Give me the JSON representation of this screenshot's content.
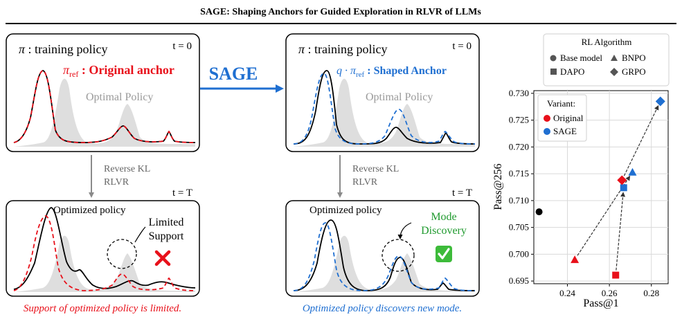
{
  "title": "SAGE: Shaping Anchors for Guided Exploration in RLVR of LLMs",
  "left_top": {
    "policy_symbol": "π",
    "policy_text": " : training policy",
    "time": "t = 0",
    "anchor_symbol": "π",
    "anchor_sub": "ref",
    "anchor_text": " : Original anchor",
    "optimal": "Optimal Policy"
  },
  "arrow_label": "SAGE",
  "mid_top": {
    "policy_symbol": "π",
    "policy_text": " : training policy",
    "time": "t = 0",
    "anchor_prefix": "q · π",
    "anchor_sub": "ref",
    "anchor_text": " : Shaped Anchor",
    "optimal": "Optimal Policy"
  },
  "transition": {
    "line1": "Reverse KL",
    "line2": "RLVR",
    "time": "t = T"
  },
  "left_bottom": {
    "optimized": "Optimized policy",
    "limited_line1": "Limited",
    "limited_line2": "Support",
    "caption": "Support of optimized policy is limited."
  },
  "mid_bottom": {
    "optimized": "Optimized policy",
    "mode_line1": "Mode",
    "mode_line2": "Discovery",
    "caption": "Optimized policy discovers new mode."
  },
  "legend_algo": {
    "title": "RL Algorithm",
    "items": [
      {
        "label": "Base model",
        "marker": "circle"
      },
      {
        "label": "BNPO",
        "marker": "triangle"
      },
      {
        "label": "DAPO",
        "marker": "square"
      },
      {
        "label": "GRPO",
        "marker": "diamond"
      }
    ]
  },
  "chart_data": {
    "type": "scatter",
    "xlabel": "Pass@1",
    "ylabel": "Pass@256",
    "xlim": [
      0.224,
      0.288
    ],
    "ylim": [
      0.6945,
      0.7305
    ],
    "xticks": [
      "0.24",
      "0.26",
      "0.28"
    ],
    "yticks": [
      "0.695",
      "0.700",
      "0.705",
      "0.710",
      "0.715",
      "0.720",
      "0.725",
      "0.730"
    ],
    "grid": true,
    "variant_legend": {
      "title": "Variant:",
      "items": [
        {
          "label": "Original",
          "color": "#e8101a"
        },
        {
          "label": "SAGE",
          "color": "#1f6fd1"
        }
      ]
    },
    "colors": {
      "base": "#000000",
      "original": "#e8101a",
      "sage": "#1f6fd1"
    },
    "points": [
      {
        "algo": "Base model",
        "variant": "base",
        "marker": "circle",
        "x": 0.2265,
        "y": 0.7079
      },
      {
        "algo": "BNPO",
        "variant": "original",
        "marker": "triangle",
        "x": 0.2435,
        "y": 0.699
      },
      {
        "algo": "BNPO",
        "variant": "sage",
        "marker": "triangle",
        "x": 0.271,
        "y": 0.7153
      },
      {
        "algo": "DAPO",
        "variant": "original",
        "marker": "square",
        "x": 0.263,
        "y": 0.6961
      },
      {
        "algo": "DAPO",
        "variant": "sage",
        "marker": "square",
        "x": 0.2668,
        "y": 0.7124
      },
      {
        "algo": "GRPO",
        "variant": "original",
        "marker": "diamond",
        "x": 0.266,
        "y": 0.7138
      },
      {
        "algo": "GRPO",
        "variant": "sage",
        "marker": "diamond",
        "x": 0.2843,
        "y": 0.7285
      }
    ]
  }
}
